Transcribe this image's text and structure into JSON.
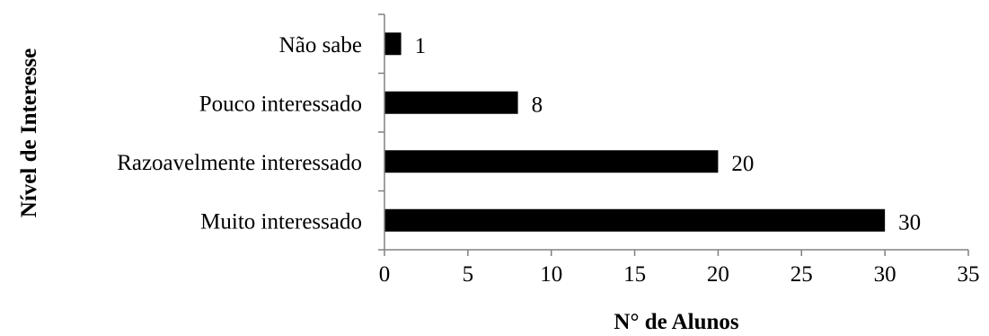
{
  "chart_data": {
    "type": "bar",
    "orientation": "horizontal",
    "title": "",
    "xlabel": "N° de Alunos",
    "ylabel": "Nível de Interesse",
    "categories": [
      "Muito interessado",
      "Razoavelmente interessado",
      "Pouco interessado",
      "Não sabe"
    ],
    "values": [
      30,
      20,
      8,
      1
    ],
    "xlim": [
      0,
      35
    ],
    "xticks": [
      0,
      5,
      10,
      15,
      20,
      25,
      30,
      35
    ],
    "xtick_labels": [
      "0",
      "5",
      "10",
      "15",
      "20",
      "25",
      "30",
      "35"
    ],
    "data_labels": [
      "30",
      "20",
      "8",
      "1"
    ],
    "grid": false,
    "legend": "none",
    "bar_color": "#000000"
  }
}
